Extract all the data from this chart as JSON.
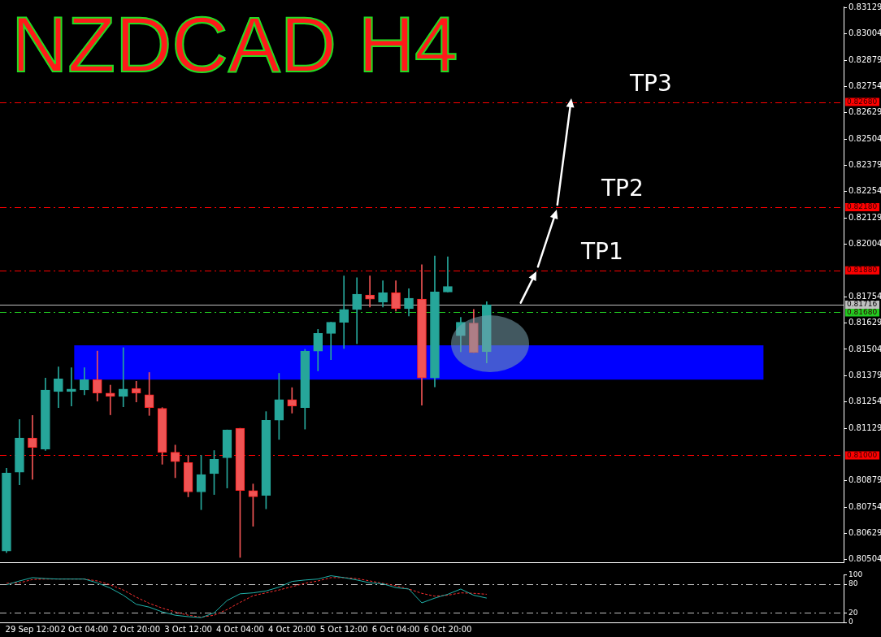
{
  "chart_data": [
    {
      "type": "candlestick",
      "title": "NZDCAD H4",
      "categories": [
        null,
        null,
        null,
        null,
        null,
        null,
        null,
        null,
        null,
        null,
        null,
        null,
        null,
        null,
        null,
        null,
        null,
        null,
        null,
        null,
        null,
        null,
        null,
        null,
        null,
        null,
        null,
        null,
        null,
        null,
        null,
        null,
        null,
        null,
        null,
        null,
        null,
        null,
        null,
        null,
        null,
        null,
        null,
        null,
        null,
        null,
        null,
        null,
        null,
        null,
        null,
        null,
        null,
        null,
        null,
        null,
        null,
        null,
        null,
        null,
        null,
        null,
        null,
        null,
        null
      ],
      "ohlc": [
        [
          0.80545,
          0.80939,
          0.80538,
          0.80917
        ],
        [
          0.8092,
          0.81171,
          0.8086,
          0.81083
        ],
        [
          0.81083,
          0.8119,
          0.80886,
          0.81038
        ],
        [
          0.8103,
          0.81368,
          0.81023,
          0.81311
        ],
        [
          0.81303,
          0.81421,
          0.81227,
          0.81364
        ],
        [
          0.81303,
          0.81417,
          0.81235,
          0.81315
        ],
        [
          0.81311,
          0.81417,
          0.81288,
          0.8136
        ],
        [
          0.8136,
          0.81496,
          0.81258,
          0.81296
        ],
        [
          0.81296,
          0.81334,
          0.81193,
          0.8128
        ],
        [
          0.8128,
          0.81512,
          0.81231,
          0.81315
        ],
        [
          0.81318,
          0.81352,
          0.81254,
          0.81296
        ],
        [
          0.81288,
          0.81394,
          0.8119,
          0.81227
        ],
        [
          0.81224,
          0.81227,
          0.80958,
          0.81015
        ],
        [
          0.81015,
          0.81049,
          0.80894,
          0.8097
        ],
        [
          0.80966,
          0.81,
          0.80803,
          0.80826
        ],
        [
          0.80826,
          0.81,
          0.80742,
          0.80909
        ],
        [
          0.80913,
          0.81023,
          0.80814,
          0.80981
        ],
        [
          0.80989,
          0.81121,
          0.80845,
          0.81121
        ],
        [
          0.81129,
          0.81129,
          0.80515,
          0.80833
        ],
        [
          0.80833,
          0.80864,
          0.80663,
          0.80803
        ],
        [
          0.8081,
          0.81208,
          0.80746,
          0.81167
        ],
        [
          0.81167,
          0.8139,
          0.81076,
          0.81265
        ],
        [
          0.81265,
          0.81322,
          0.81201,
          0.81235
        ],
        [
          0.81227,
          0.81504,
          0.81125,
          0.81496
        ],
        [
          0.81496,
          0.81599,
          0.81402,
          0.8158
        ],
        [
          0.8158,
          0.81633,
          0.81455,
          0.81633
        ],
        [
          0.81633,
          0.81853,
          0.81508,
          0.81694
        ],
        [
          0.81694,
          0.81845,
          0.81531,
          0.81766
        ],
        [
          0.81762,
          0.81853,
          0.81705,
          0.81743
        ],
        [
          0.81728,
          0.8183,
          0.81705,
          0.81773
        ],
        [
          0.81773,
          0.8183,
          0.81686,
          0.81697
        ],
        [
          0.81697,
          0.81792,
          0.81663,
          0.81747
        ],
        [
          0.81743,
          0.81906,
          0.81239,
          0.81368
        ],
        [
          0.81368,
          0.81948,
          0.81326,
          0.81777
        ],
        [
          0.81777,
          0.81944,
          0.81777,
          0.81803
        ],
        [
          0.81569,
          0.81656,
          0.81493,
          0.81633
        ],
        [
          0.81629,
          0.81694,
          0.81489,
          0.81489
        ],
        [
          0.81493,
          0.81731,
          0.8144,
          0.81716
        ],
        null,
        null,
        null,
        null,
        null,
        null,
        null,
        null,
        null,
        null,
        null,
        null,
        null,
        null,
        null,
        null,
        null,
        null,
        null,
        null,
        null,
        null,
        null,
        null,
        null,
        null,
        null
      ],
      "ylim": [
        0.80492,
        0.83134
      ],
      "yticks": [
        0.80504,
        0.80629,
        0.80754,
        0.80879,
        0.81129,
        0.81254,
        0.81379,
        0.81504,
        0.81629,
        0.81754,
        0.82004,
        0.82129,
        0.82254,
        0.82379,
        0.82504,
        0.82629,
        0.82754,
        0.82879,
        0.83004,
        0.83129
      ],
      "tick_labels": "y",
      "ref_lines": [
        {
          "axis": "y",
          "value": 0.8188,
          "label": "0.81880",
          "color": "#ff0000",
          "line_style": "dashed"
        },
        {
          "axis": "y",
          "value": 0.8218,
          "label": "0.82180",
          "color": "#ff0000",
          "line_style": "dashed"
        },
        {
          "axis": "y",
          "value": 0.8268,
          "label": "0.82680",
          "color": "#ff0000",
          "line_style": "dashed"
        },
        {
          "axis": "y",
          "value": 0.81,
          "label": "0.81000",
          "color": "#ff0000",
          "line_style": "dashed"
        },
        {
          "axis": "y",
          "value": 0.8168,
          "label": "0.81680",
          "color": "#22cc22",
          "line_style": "dashed"
        },
        {
          "axis": "y",
          "value": 0.81716,
          "label": "0.81716",
          "color": "#c0c0c0",
          "line_style": "solid"
        }
      ],
      "annotations": [
        "TP1",
        "TP2",
        "TP3"
      ],
      "bands": [
        {
          "axis": "y",
          "from": 0.8136,
          "to": 0.81523,
          "color": "#0000ff"
        }
      ]
    },
    {
      "type": "line",
      "categories": [
        null,
        null,
        "29 Sep 12:00",
        null,
        null,
        null,
        "2 Oct 04:00",
        null,
        null,
        null,
        "2 Oct 20:00",
        null,
        null,
        null,
        "3 Oct 12:00",
        null,
        null,
        null,
        "4 Oct 04:00",
        null,
        null,
        null,
        "4 Oct 20:00",
        null,
        null,
        null,
        "5 Oct 12:00",
        null,
        null,
        null,
        "6 Oct 04:00",
        null,
        null,
        null,
        "6 Oct 20:00",
        null,
        null,
        null,
        null,
        null,
        null,
        null,
        null,
        null,
        null,
        null,
        null,
        null,
        null,
        null,
        null,
        null,
        null,
        null,
        null,
        null,
        null,
        null,
        null,
        null,
        null,
        null,
        null,
        null,
        null
      ],
      "series": [
        {
          "color": "#20b2aa",
          "line_style": "solid",
          "values": [
            79,
            87,
            94,
            92,
            91,
            91,
            91,
            83,
            72,
            57,
            38,
            32,
            22,
            15,
            12,
            10,
            20,
            46,
            60,
            62,
            66,
            74,
            86,
            89,
            91,
            98,
            94,
            89,
            83,
            81,
            73,
            70,
            41,
            51,
            59,
            70,
            57,
            51,
            null,
            null,
            null,
            null,
            null,
            null,
            null,
            null,
            null,
            null,
            null,
            null,
            null,
            null,
            null,
            null,
            null,
            null,
            null,
            null,
            null,
            null,
            null,
            null,
            null,
            null,
            null
          ]
        },
        {
          "color": "#ff3030",
          "line_style": "dashed",
          "values": [
            82,
            83,
            90,
            91,
            91,
            91,
            91,
            87,
            79,
            68,
            53,
            40,
            30,
            22,
            15,
            11,
            15,
            27,
            42,
            56,
            62,
            68,
            75,
            82,
            87,
            94,
            94,
            92,
            87,
            82,
            77,
            70,
            61,
            55,
            57,
            62,
            61,
            59,
            null,
            null,
            null,
            null,
            null,
            null,
            null,
            null,
            null,
            null,
            null,
            null,
            null,
            null,
            null,
            null,
            null,
            null,
            null,
            null,
            null,
            null,
            null,
            null,
            null,
            null,
            null
          ]
        }
      ],
      "ylim": [
        0,
        100
      ],
      "yticks": [
        0,
        20,
        80,
        100
      ],
      "marker": "none",
      "ref_lines": [
        {
          "axis": "y",
          "value": 80,
          "label": null,
          "color": "#c0c0c0",
          "line_style": "dashed"
        },
        {
          "axis": "y",
          "value": 20,
          "label": null,
          "color": "#c0c0c0",
          "line_style": "dashed"
        }
      ]
    }
  ]
}
